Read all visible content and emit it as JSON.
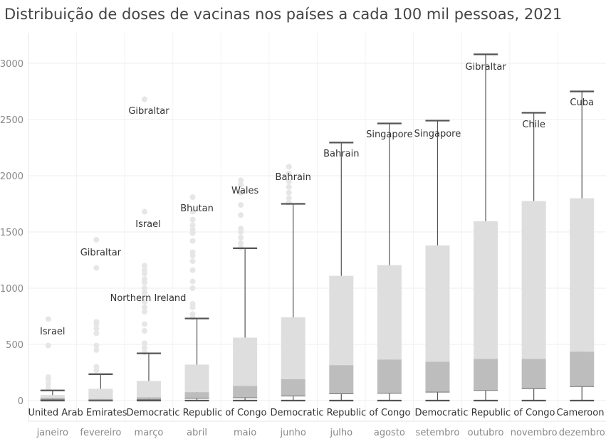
{
  "chart_data": {
    "type": "box",
    "title": "Distribuição de doses de vacinas nos países a cada 100 mil pessoas, 2021",
    "xlabel": "",
    "ylabel": "",
    "ylim": [
      0,
      3150
    ],
    "yticks": [
      0,
      500,
      1000,
      1500,
      2000,
      2500,
      3000
    ],
    "grid": true,
    "categories": [
      "janeiro",
      "fevereiro",
      "março",
      "abril",
      "maio",
      "junho",
      "julho",
      "agosto",
      "setembro",
      "outubro",
      "novembro",
      "dezembro"
    ],
    "series": [
      {
        "values": [
          {
            "min": 0,
            "q1": 10,
            "median": 25,
            "q3": 50,
            "max": 90
          },
          {
            "min": 0,
            "q1": 5,
            "median": 15,
            "q3": 105,
            "max": 235
          },
          {
            "min": 0,
            "q1": 10,
            "median": 30,
            "q3": 175,
            "max": 420
          },
          {
            "min": 0,
            "q1": 20,
            "median": 75,
            "q3": 320,
            "max": 730
          },
          {
            "min": 0,
            "q1": 25,
            "median": 130,
            "q3": 560,
            "max": 1355
          },
          {
            "min": 0,
            "q1": 40,
            "median": 190,
            "q3": 740,
            "max": 1750
          },
          {
            "min": 0,
            "q1": 60,
            "median": 315,
            "q3": 1110,
            "max": 2295
          },
          {
            "min": 0,
            "q1": 65,
            "median": 365,
            "q3": 1205,
            "max": 2465
          },
          {
            "min": 0,
            "q1": 75,
            "median": 345,
            "q3": 1380,
            "max": 2490
          },
          {
            "min": 0,
            "q1": 90,
            "median": 370,
            "q3": 1595,
            "max": 3080
          },
          {
            "min": 0,
            "q1": 105,
            "median": 370,
            "q3": 1775,
            "max": 2560
          },
          {
            "min": 0,
            "q1": 125,
            "median": 435,
            "q3": 1800,
            "max": 2750
          }
        ]
      }
    ],
    "outliers": [
      [
        110,
        150,
        190,
        210,
        490,
        725
      ],
      [
        270,
        300,
        450,
        490,
        600,
        640,
        680,
        700,
        1180,
        1430
      ],
      [
        430,
        470,
        510,
        620,
        680,
        790,
        830,
        880,
        960,
        1000,
        1050,
        1080,
        1130,
        1160,
        1200,
        1680,
        2680
      ],
      [
        740,
        770,
        830,
        860,
        1000,
        1060,
        1160,
        1240,
        1290,
        1320,
        1420,
        1490,
        1520,
        1560,
        1610,
        1680,
        1810
      ],
      [
        1360,
        1400,
        1450,
        1500,
        1530,
        1650,
        1740,
        1850,
        1920,
        1960
      ],
      [
        1760,
        1800,
        1850,
        1900,
        1950,
        2020,
        2080
      ],
      [],
      [],
      [],
      [],
      [],
      []
    ],
    "top_labels": [
      "Israel",
      "Gibraltar",
      "Gibraltar",
      "Bhutan",
      "Wales",
      "Bahrain",
      "Bahrain",
      "Singapore",
      "Singapore",
      "Gibraltar",
      "Chile",
      "Cuba"
    ],
    "extra_labels": [
      {
        "text": "Israel",
        "category": 2
      },
      {
        "text": "Northern Ireland",
        "category": 2
      }
    ],
    "bottom_labels": [
      {
        "text": "United Arab Emirates",
        "category": 1
      },
      {
        "text": "Democratic Republic of Congo",
        "category": 3
      },
      {
        "text": "Democratic Republic of Congo",
        "category": 6
      },
      {
        "text": "Democratic Republic of Congo",
        "category": 9
      },
      {
        "text": "Cameroon",
        "category": 11
      }
    ],
    "colors": {
      "upper_box": "#dedede",
      "lower_box": "#bdbdbd",
      "whisker": "#555555",
      "outlier": "#e6e6e6",
      "grid": "#eeeeee",
      "axis_text": "#888888",
      "label_text": "#333333"
    }
  }
}
